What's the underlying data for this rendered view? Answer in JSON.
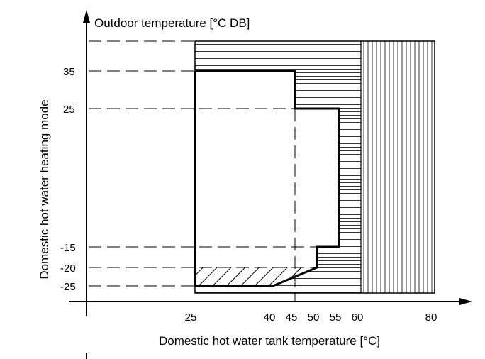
{
  "y_axis": {
    "label": "Domestic hot water heating mode",
    "title": "Outdoor temperature [°C DB]",
    "ticks": [
      "35",
      "25",
      "-15",
      "-20",
      "-25"
    ]
  },
  "x_axis": {
    "label": "Domestic hot water tank temperature [°C]",
    "ticks": [
      "25",
      "40",
      "45",
      "50",
      "55",
      "60",
      "80"
    ]
  }
}
